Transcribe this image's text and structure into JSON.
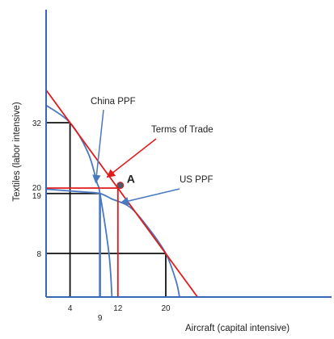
{
  "chart_data": {
    "type": "line",
    "xlabel": "Aircraft  (capital intensive)",
    "ylabel": "Textiles (labor intensive)",
    "xlim": [
      0,
      37
    ],
    "ylim": [
      0,
      47
    ],
    "colors": {
      "axis": "#3a66b5",
      "ppf": "#4a78c0",
      "terms_of_trade": "#e01b1b",
      "guide": "#111111",
      "trade_point": "#e01b1b"
    },
    "x_ticks": [
      {
        "value": 4,
        "label": "4",
        "color": "#222222"
      },
      {
        "value": 9,
        "label": "9",
        "color": "#222222"
      },
      {
        "value": 12,
        "label": "12",
        "color": "#e01b1b"
      },
      {
        "value": 20,
        "label": "20",
        "color": "#222222"
      }
    ],
    "y_ticks": [
      {
        "value": 32,
        "label": "32",
        "color": "#222222"
      },
      {
        "value": 20,
        "label": "20",
        "color": "#e01b1b"
      },
      {
        "value": 19,
        "label": "19",
        "color": "#222222"
      },
      {
        "value": 8,
        "label": "8",
        "color": "#222222"
      }
    ],
    "series": [
      {
        "name": "China PPF",
        "points": [
          [
            0,
            35.2
          ],
          [
            4,
            32
          ],
          [
            7,
            26.5
          ],
          [
            8.5,
            21
          ],
          [
            9,
            19
          ],
          [
            10.5,
            8
          ],
          [
            11,
            0
          ]
        ]
      },
      {
        "name": "US PPF",
        "points": [
          [
            0,
            19.8
          ],
          [
            6,
            19.3
          ],
          [
            9,
            19
          ],
          [
            11,
            18
          ],
          [
            14,
            16.5
          ],
          [
            17,
            12.8
          ],
          [
            20,
            8
          ],
          [
            21.7,
            3
          ],
          [
            22.3,
            0
          ]
        ]
      },
      {
        "name": "Terms of Trade",
        "points": [
          [
            0,
            38
          ],
          [
            4,
            32
          ],
          [
            12,
            20
          ],
          [
            20,
            8
          ],
          [
            25.3,
            0
          ]
        ]
      }
    ],
    "guides": [
      {
        "from": [
          0,
          32
        ],
        "to": [
          4,
          32
        ]
      },
      {
        "from": [
          4,
          32
        ],
        "to": [
          4,
          0
        ]
      },
      {
        "from": [
          0,
          8
        ],
        "to": [
          20,
          8
        ]
      },
      {
        "from": [
          20,
          8
        ],
        "to": [
          20,
          0
        ]
      },
      {
        "from": [
          0,
          19
        ],
        "to": [
          9,
          19
        ]
      }
    ],
    "china_production": {
      "from": [
        9,
        19
      ],
      "to": [
        9,
        0
      ]
    },
    "trade_guides": [
      {
        "from": [
          0,
          20
        ],
        "to": [
          12,
          20
        ]
      },
      {
        "from": [
          12,
          20
        ],
        "to": [
          12,
          0
        ]
      }
    ],
    "point": {
      "label": "A",
      "x": 12.4,
      "y": 20.5
    },
    "annotations": [
      {
        "text": "China PPF",
        "arrow_to": [
          8.3,
          21
        ]
      },
      {
        "text": "Terms of Trade",
        "arrow_to": [
          10.2,
          22
        ]
      },
      {
        "text": "US PPF",
        "arrow_to": [
          12.5,
          17.3
        ]
      }
    ]
  }
}
